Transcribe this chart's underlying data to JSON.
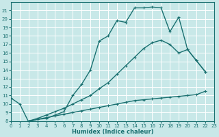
{
  "xlabel": "Humidex (Indice chaleur)",
  "background_color": "#c8e8e8",
  "grid_color": "#ffffff",
  "line_color": "#1a7070",
  "xlim": [
    0,
    23
  ],
  "ylim": [
    8,
    22
  ],
  "xticks": [
    0,
    1,
    2,
    3,
    4,
    5,
    6,
    7,
    8,
    9,
    10,
    11,
    12,
    13,
    14,
    15,
    16,
    17,
    18,
    19,
    20,
    21,
    22,
    23
  ],
  "yticks": [
    8,
    9,
    10,
    11,
    12,
    13,
    14,
    15,
    16,
    17,
    18,
    19,
    20,
    21
  ],
  "curve1_x": [
    0,
    1,
    2,
    3,
    4,
    5,
    6,
    7,
    8,
    9,
    10,
    11,
    12,
    13,
    14,
    15,
    16,
    17,
    18,
    19,
    20,
    21,
    22
  ],
  "curve1_y": [
    10.7,
    10.0,
    7.9,
    8.2,
    8.3,
    8.7,
    9.1,
    11.0,
    12.3,
    14.0,
    17.4,
    18.0,
    19.8,
    19.6,
    21.3,
    21.3,
    21.4,
    21.3,
    18.5,
    20.2,
    16.4,
    15.1,
    13.8
  ],
  "curve2_x": [
    2,
    3,
    4,
    5,
    6,
    7,
    8,
    9,
    10,
    11,
    12,
    13,
    14,
    15,
    16,
    17,
    18,
    19,
    20,
    21,
    22
  ],
  "curve2_y": [
    8.0,
    8.3,
    8.7,
    9.1,
    9.5,
    10.0,
    10.5,
    11.0,
    11.8,
    12.5,
    13.5,
    14.5,
    15.5,
    16.5,
    17.2,
    17.5,
    17.0,
    16.0,
    16.4,
    15.1,
    13.8
  ],
  "curve3_x": [
    2,
    3,
    4,
    5,
    6,
    7,
    8,
    9,
    10,
    11,
    12,
    13,
    14,
    15,
    16,
    17,
    18,
    19,
    20,
    21,
    22
  ],
  "curve3_y": [
    8.0,
    8.2,
    8.4,
    8.6,
    8.8,
    9.0,
    9.2,
    9.4,
    9.6,
    9.8,
    10.0,
    10.2,
    10.4,
    10.5,
    10.6,
    10.7,
    10.8,
    10.9,
    11.0,
    11.1,
    11.5
  ],
  "marker_size": 3,
  "line_width": 1.0
}
